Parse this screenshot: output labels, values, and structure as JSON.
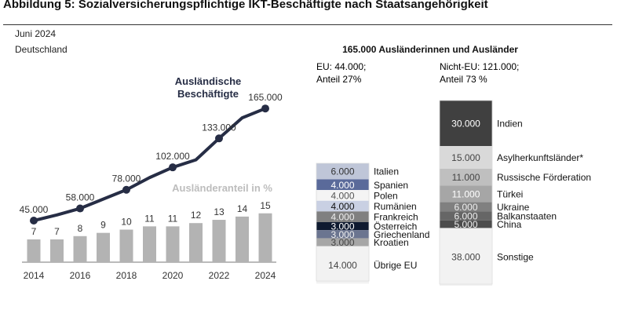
{
  "title": "Abbildung 5: Sozialversicherungspflichtige IKT-Beschäftigte nach Staatsangehörigkeit",
  "subtitle_date": "Juni 2024",
  "subtitle_region": "Deutschland",
  "chart_data": [
    {
      "type": "bar+line",
      "x": [
        2014,
        2015,
        2016,
        2017,
        2018,
        2019,
        2020,
        2021,
        2022,
        2023,
        2024
      ],
      "x_tick_labels": [
        "2014",
        "2016",
        "2018",
        "2020",
        "2022",
        "2024"
      ],
      "series": [
        {
          "name": "Ausländische Beschäftigte",
          "type": "line",
          "values": [
            45000,
            51000,
            58000,
            68000,
            78000,
            91000,
            102000,
            110000,
            133000,
            155000,
            165000
          ],
          "labels": {
            "2014": "45.000",
            "2016": "58.000",
            "2018": "78.000",
            "2020": "102.000",
            "2022": "133.000",
            "2024": "165.000"
          },
          "color": "#262d45"
        },
        {
          "name": "Ausländeranteil in %",
          "type": "bar",
          "values": [
            7,
            7,
            8,
            9,
            10,
            11,
            11,
            12,
            13,
            14,
            15
          ],
          "color": "#b3b3b3"
        }
      ],
      "legend_line": "Ausländische\nBeschäftigte",
      "legend_line_1": "Ausländische",
      "legend_line_2": "Beschäftigte",
      "legend_bar": "Ausländeranteil in %",
      "grid": false
    },
    {
      "type": "stacked-bar",
      "title": "165.000 Ausländerinnen und Ausländer",
      "stacks": [
        {
          "header_1": "EU: 44.000;",
          "header_2": "Anteil 27%",
          "total": 44000,
          "segments": [
            {
              "label": "Italien",
              "value": 6000,
              "text": "6.000",
              "color": "#bfc6d8",
              "fg": "#333"
            },
            {
              "label": "Spanien",
              "value": 4000,
              "text": "4.000",
              "color": "#5a6a9a",
              "fg": "#fff"
            },
            {
              "label": "Polen",
              "value": 4000,
              "text": "4.000",
              "color": "#f4f4f4",
              "fg": "#555"
            },
            {
              "label": "Rumänien",
              "value": 4000,
              "text": "4.000",
              "color": "#c9d0e3",
              "fg": "#111"
            },
            {
              "label": "Frankreich",
              "value": 4000,
              "text": "4.000",
              "color": "#808080",
              "fg": "#eee"
            },
            {
              "label": "Österreich",
              "value": 3000,
              "text": "3.000",
              "color": "#0f1a30",
              "fg": "#fff"
            },
            {
              "label": "Griechenland",
              "value": 3000,
              "text": "3.000",
              "color": "#6b7590",
              "fg": "#eee"
            },
            {
              "label": "Kroatien",
              "value": 3000,
              "text": "3.000",
              "color": "#a6a6a6",
              "fg": "#444"
            },
            {
              "label": "Übrige EU",
              "value": 14000,
              "text": "14.000",
              "color": "#f2f2f2",
              "fg": "#444"
            }
          ]
        },
        {
          "header_1": "Nicht-EU: 121.000;",
          "header_2": "Anteil 73 %",
          "total": 121000,
          "segments": [
            {
              "label": "Indien",
              "value": 30000,
              "text": "30.000",
              "color": "#404040",
              "fg": "#fff"
            },
            {
              "label": "Asylherkunftsländer*",
              "value": 15000,
              "text": "15.000",
              "color": "#d9d9d9",
              "fg": "#444"
            },
            {
              "label": "Russische Förderation",
              "value": 11000,
              "text": "11.000",
              "color": "#bfbfbf",
              "fg": "#444"
            },
            {
              "label": "Türkei",
              "value": 11000,
              "text": "11.000",
              "color": "#a6a6a6",
              "fg": "#fff"
            },
            {
              "label": "Ukraine",
              "value": 6000,
              "text": "6.000",
              "color": "#808080",
              "fg": "#eee"
            },
            {
              "label": "Balkanstaaten",
              "value": 6000,
              "text": "6.000",
              "color": "#666666",
              "fg": "#eee"
            },
            {
              "label": "China",
              "value": 5000,
              "text": "5.000",
              "color": "#4d4d4d",
              "fg": "#eee"
            },
            {
              "label": "Sonstige",
              "value": 38000,
              "text": "38.000",
              "color": "#f2f2f2",
              "fg": "#444"
            }
          ]
        }
      ]
    }
  ]
}
